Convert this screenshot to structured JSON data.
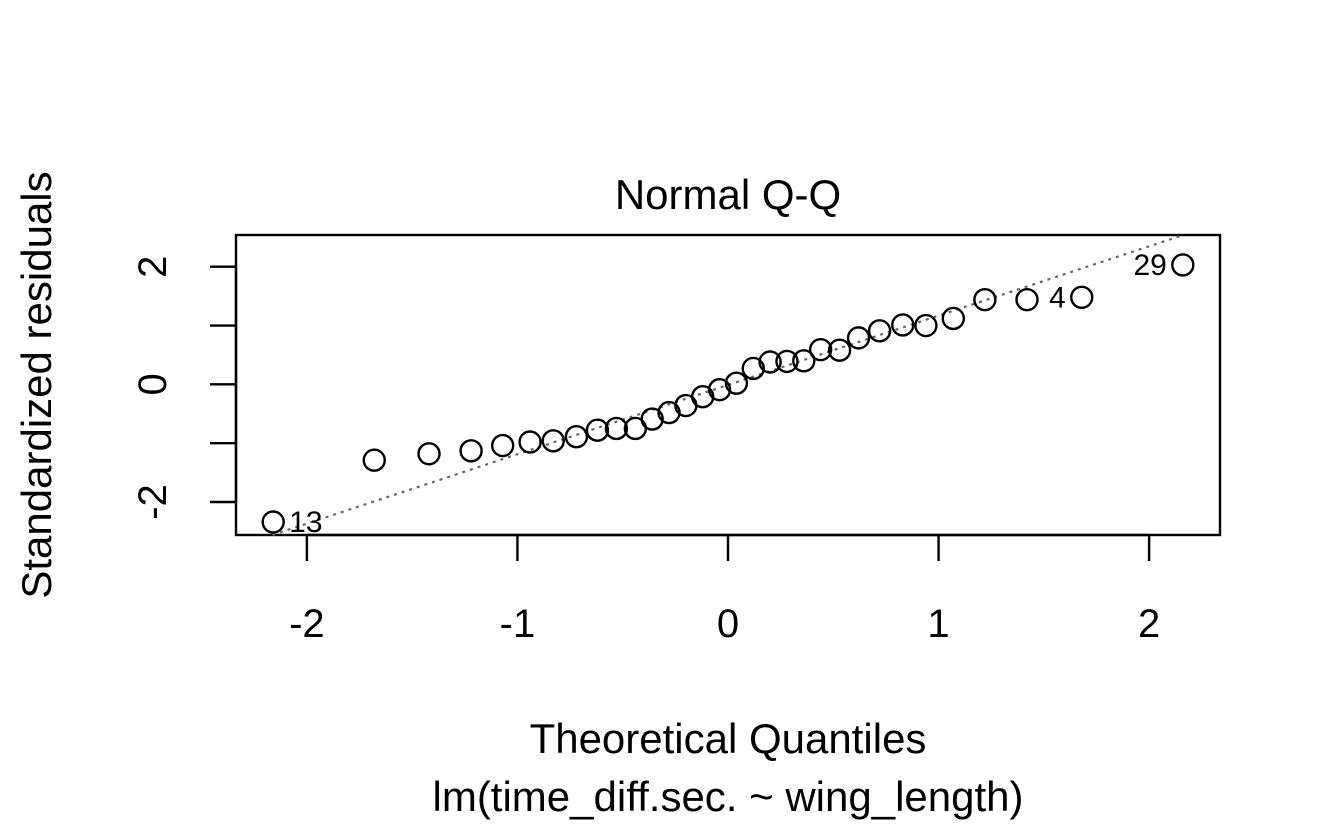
{
  "chart_data": {
    "type": "scatter",
    "title": "Normal Q-Q",
    "xlabel": "Theoretical Quantiles",
    "ylabel": "Standardized residuals",
    "subtitle": "lm(time_diff.sec. ~ wing_length)",
    "xlim": [
      -2.3366,
      2.3366
    ],
    "ylim": [
      -2.561,
      2.539
    ],
    "x_ticks": [
      -2,
      -1,
      0,
      1,
      2
    ],
    "x_tick_labels": [
      "-2",
      "-1",
      "0",
      "1",
      "2"
    ],
    "y_ticks": [
      -2,
      -1,
      0,
      1,
      2
    ],
    "y_tick_labels": [
      "-2",
      "",
      "0",
      "",
      "2"
    ],
    "grid": false,
    "legend": "none",
    "reference_line": {
      "style": "dotted",
      "color": "#666666",
      "points": [
        [
          -2.1638,
          -2.56
        ],
        [
          2.1638,
          2.54
        ]
      ]
    },
    "series": [
      {
        "marker": "open-circle",
        "points": [
          {
            "x": -2.16,
            "y": -2.34
          },
          {
            "x": -1.68,
            "y": -1.29
          },
          {
            "x": -1.42,
            "y": -1.18
          },
          {
            "x": -1.22,
            "y": -1.13
          },
          {
            "x": -1.07,
            "y": -1.04
          },
          {
            "x": -0.94,
            "y": -0.98
          },
          {
            "x": -0.83,
            "y": -0.96
          },
          {
            "x": -0.72,
            "y": -0.89
          },
          {
            "x": -0.62,
            "y": -0.78
          },
          {
            "x": -0.53,
            "y": -0.75
          },
          {
            "x": -0.44,
            "y": -0.75
          },
          {
            "x": -0.36,
            "y": -0.59
          },
          {
            "x": -0.28,
            "y": -0.48
          },
          {
            "x": -0.2,
            "y": -0.36
          },
          {
            "x": -0.12,
            "y": -0.21
          },
          {
            "x": -0.04,
            "y": -0.09
          },
          {
            "x": 0.04,
            "y": 0.02
          },
          {
            "x": 0.12,
            "y": 0.27
          },
          {
            "x": 0.2,
            "y": 0.38
          },
          {
            "x": 0.28,
            "y": 0.39
          },
          {
            "x": 0.36,
            "y": 0.4
          },
          {
            "x": 0.44,
            "y": 0.59
          },
          {
            "x": 0.53,
            "y": 0.58
          },
          {
            "x": 0.62,
            "y": 0.79
          },
          {
            "x": 0.72,
            "y": 0.91
          },
          {
            "x": 0.83,
            "y": 1.01
          },
          {
            "x": 0.94,
            "y": 1.0
          },
          {
            "x": 1.07,
            "y": 1.12
          },
          {
            "x": 1.22,
            "y": 1.44
          },
          {
            "x": 1.42,
            "y": 1.44
          },
          {
            "x": 1.68,
            "y": 1.48
          },
          {
            "x": 2.16,
            "y": 2.03
          }
        ]
      }
    ],
    "point_labels": [
      {
        "text": "13",
        "x": -2.16,
        "y": -2.34,
        "side": "right"
      },
      {
        "text": "4",
        "x": 1.68,
        "y": 1.48,
        "side": "left"
      },
      {
        "text": "29",
        "x": 2.16,
        "y": 2.03,
        "side": "left"
      }
    ]
  }
}
